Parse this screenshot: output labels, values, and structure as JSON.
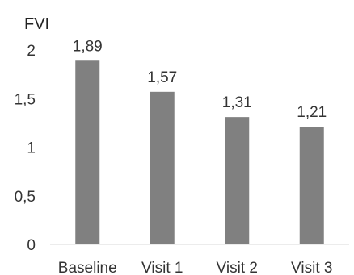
{
  "chart_data": {
    "type": "bar",
    "ylabel": "FVI",
    "categories": [
      "Baseline",
      "Visit 1",
      "Visit 2",
      "Visit 3"
    ],
    "values": [
      1.89,
      1.57,
      1.31,
      1.21
    ],
    "data_labels": [
      "1,89",
      "1,57",
      "1,31",
      "1,21"
    ],
    "yticks": [
      0,
      0.5,
      1,
      1.5,
      2
    ],
    "ytick_labels": [
      "0",
      "0,5",
      "1",
      "1,5",
      "2"
    ],
    "ylim": [
      0,
      2
    ],
    "grid": false,
    "legend": "none",
    "bar_color": "#808080"
  }
}
